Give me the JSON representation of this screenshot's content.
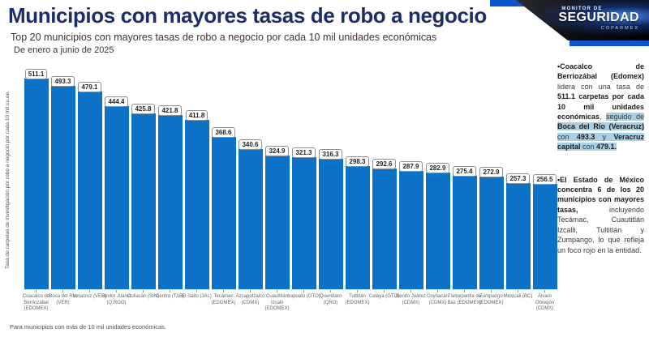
{
  "page": {
    "title": "Municipios con mayores tasas de robo a negocio",
    "subtitle": "Top 20 municipios con mayores tasas de robo a negocio por cada 10 mil unidades económicas",
    "period": "De enero a junio de 2025",
    "footnote": "Para municipios con más de 10 mil unidades económicas."
  },
  "logo": {
    "line1": "MONITOR DE",
    "line2": "SEGURIDAD",
    "line3": "COPARMEX"
  },
  "chart_data": {
    "type": "bar",
    "title": "Top 20 municipios con mayores tasas de robo a negocio por cada 10 mil unidades económicas",
    "xlabel": "",
    "ylabel": "Tasa de carpetas de investigación por robo a negocio por cada 10 mil uu.ee.",
    "ylim": [
      0,
      520
    ],
    "grid": false,
    "legend": "none",
    "bar_color": "#0C72C8",
    "categories": [
      "Coacalco de Berriozábal (EDOMEX)",
      "Boca del Río (VER)",
      "Veracruz (VER)",
      "Benito Juárez (Q.ROO)",
      "Culiacán (SIN)",
      "Centro (TAB)",
      "El Salto (JAL)",
      "Tecámac (EDOMEX)",
      "Azcapotzalco (CDMX)",
      "Cuautitlán Izcalli (EDOMEX)",
      "Irapuato (GTO)",
      "Querétaro (QRO)",
      "Tultitlán (EDOMEX)",
      "Celaya (GTO)",
      "Benito Juárez (CDMX)",
      "Coyoacán (CDMX)",
      "Tlalnepantla de Baz (EDOMEX)",
      "Zumpango (EDOMEX)",
      "Mexicali (BC)",
      "Álvaro Obregón (CDMX)"
    ],
    "values": [
      511.1,
      493.3,
      479.1,
      444.4,
      425.8,
      421.8,
      411.8,
      368.6,
      340.6,
      324.9,
      321.3,
      316.3,
      298.3,
      292.6,
      287.9,
      282.9,
      275.4,
      272.9,
      257.3,
      256.5
    ]
  },
  "insights": {
    "bullet1": [
      {
        "text": "•Coacalco de Berriozábal (Edomex)",
        "bold": true,
        "highlight": false
      },
      {
        "text": " lidera con una tasa de ",
        "bold": false,
        "highlight": false
      },
      {
        "text": "511.1 carpetas por cada 10 mil unidades económicas",
        "bold": true,
        "highlight": false
      },
      {
        "text": ", ",
        "bold": false,
        "highlight": false
      },
      {
        "text": "seguido de ",
        "bold": false,
        "highlight": true
      },
      {
        "text": "Boca del Río (Veracruz)",
        "bold": true,
        "highlight": true
      },
      {
        "text": " con ",
        "bold": false,
        "highlight": true
      },
      {
        "text": "493.3",
        "bold": true,
        "highlight": true
      },
      {
        "text": " y ",
        "bold": false,
        "highlight": true
      },
      {
        "text": "Veracruz capital",
        "bold": true,
        "highlight": true
      },
      {
        "text": " con ",
        "bold": false,
        "highlight": true
      },
      {
        "text": "479.1.",
        "bold": true,
        "highlight": true
      }
    ],
    "bullet2": [
      {
        "text": "•El Estado de México concentra 6 de los 20 municipios con mayores tasas,",
        "bold": true,
        "highlight": false
      },
      {
        "text": " incluyendo Tecámac, Cuautitlán Izcalli, Tultitlán y Zumpango, lo que refleja un foco rojo en la entidad.",
        "bold": false,
        "highlight": false
      }
    ]
  },
  "colors": {
    "bar": "#0C72C8",
    "title": "#1B2D6B",
    "subtitle": "#44302E",
    "highlight": "#A8CFE4",
    "accent_strip": "#0D55CB"
  }
}
